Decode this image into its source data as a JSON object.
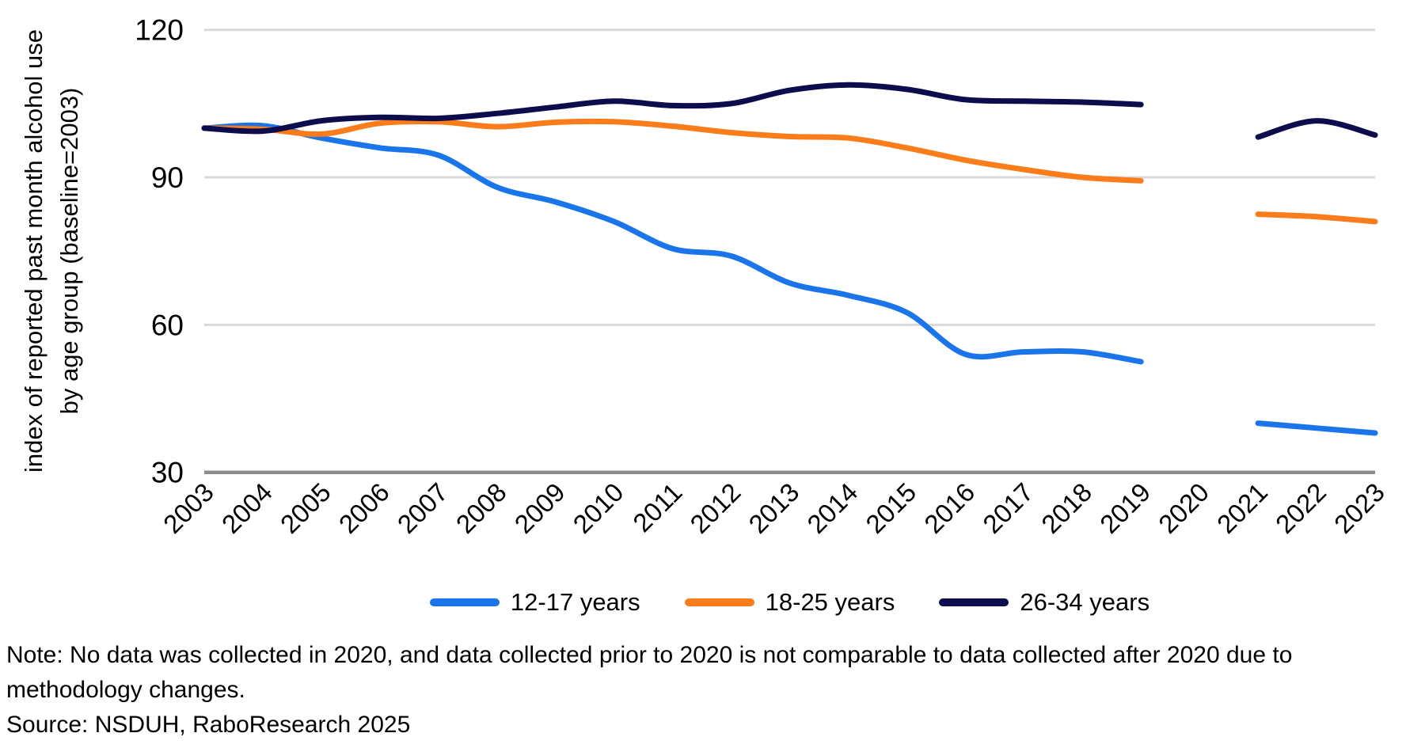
{
  "y_axis": {
    "label_line1": "index of reported past month alcohol use",
    "label_line2": "by age group (baseline=2003)"
  },
  "chart_data": {
    "type": "line",
    "x": [
      2003,
      2004,
      2005,
      2006,
      2007,
      2008,
      2009,
      2010,
      2011,
      2012,
      2013,
      2014,
      2015,
      2016,
      2017,
      2018,
      2019,
      2020,
      2021,
      2022,
      2023
    ],
    "x_tick_labels": [
      "2003",
      "2004",
      "2005",
      "2006",
      "2007",
      "2008",
      "2009",
      "2010",
      "2011",
      "2012",
      "2013",
      "2014",
      "2015",
      "2016",
      "2017",
      "2018",
      "2019",
      "2020",
      "2021",
      "2022",
      "2023"
    ],
    "y_ticks": [
      30,
      60,
      90,
      120
    ],
    "ylim": [
      30,
      120
    ],
    "grid": "horizontal",
    "legend_position": "bottom",
    "missing_data_note": "no data for 2020",
    "series": [
      {
        "name": "12-17 years",
        "color": "#1A75EB",
        "values": [
          100,
          100.5,
          98,
          96,
          94.5,
          88,
          85,
          81,
          75.5,
          74,
          68.5,
          66,
          62.5,
          54,
          54.5,
          54.5,
          52.5,
          null,
          40,
          39,
          38
        ]
      },
      {
        "name": "18-25 years",
        "color": "#FA7C1A",
        "values": [
          100,
          99.8,
          98.8,
          101,
          101.3,
          100.3,
          101.2,
          101.3,
          100.4,
          99.1,
          98.3,
          98,
          96,
          93.5,
          91.6,
          90,
          89.3,
          null,
          82.5,
          82,
          81
        ]
      },
      {
        "name": "26-34 years",
        "color": "#0D0D4D",
        "values": [
          100,
          99.4,
          101.5,
          102.2,
          102,
          103,
          104.3,
          105.5,
          104.6,
          105,
          107.7,
          108.8,
          107.9,
          105.8,
          105.5,
          105.3,
          104.8,
          null,
          98.2,
          101.5,
          98.6
        ]
      }
    ],
    "colors": {
      "gridline": "#DADADA",
      "axis_line": "#8C8C8C",
      "text": "#000000"
    }
  },
  "footnote": {
    "note_line1": "Note: No data was collected in 2020, and data collected prior to 2020 is not comparable to data collected after 2020 due to",
    "note_line2": "methodology changes.",
    "source": "Source: NSDUH, RaboResearch 2025"
  }
}
